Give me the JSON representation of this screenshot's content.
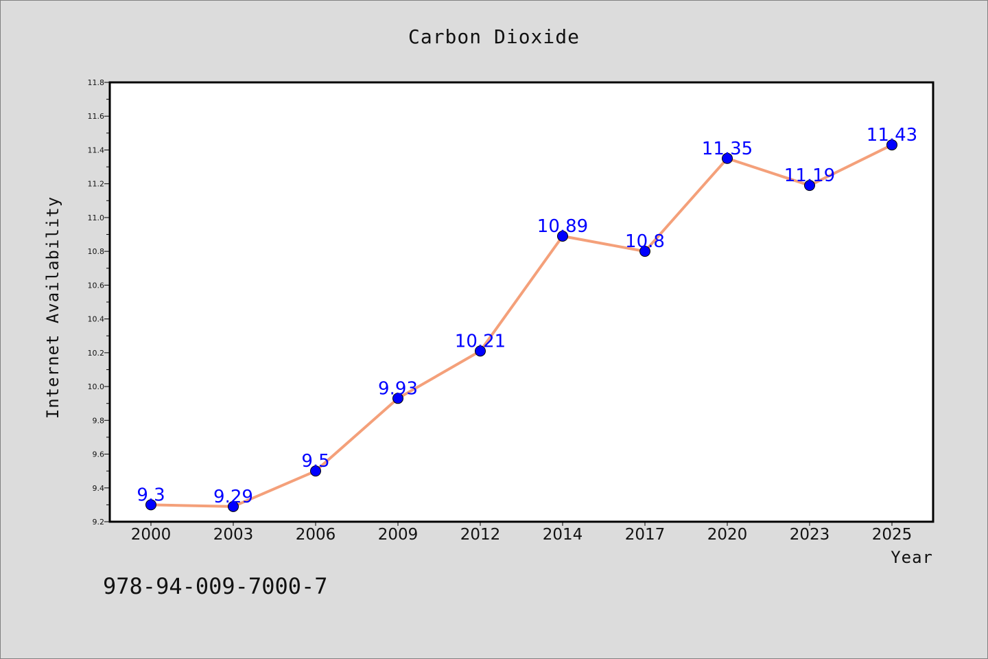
{
  "chart_data": {
    "type": "line",
    "title": "Carbon Dioxide",
    "xlabel": "Year",
    "ylabel": "Internet Availability",
    "categories": [
      "2000",
      "2003",
      "2006",
      "2009",
      "2012",
      "2014",
      "2017",
      "2020",
      "2023",
      "2025"
    ],
    "series": [
      {
        "values": [
          9.3,
          9.29,
          9.5,
          9.93,
          10.21,
          10.89,
          10.8,
          11.35,
          11.19,
          11.43
        ],
        "data_labels": [
          "9.3",
          "9.29",
          "9.5",
          "9.93",
          "10.21",
          "10.89",
          "10.8",
          "11.35",
          "11.19",
          "11.43"
        ],
        "line_color": "#f4a07a",
        "marker_color": "#0000ff"
      }
    ],
    "ylim": [
      9.2,
      11.8
    ],
    "yticks": [
      "9.2",
      "9.4",
      "9.6",
      "9.8",
      "10.0",
      "10.2",
      "10.4",
      "10.6",
      "10.8",
      "11.0",
      "11.2",
      "11.4",
      "11.6",
      "11.8"
    ],
    "grid": false,
    "legend": "none",
    "label_color": "#0000ff",
    "plot_background": "#ffffff",
    "figure_background": "#dcdcdc"
  },
  "footer": {
    "isbn": "978-94-009-7000-7"
  }
}
